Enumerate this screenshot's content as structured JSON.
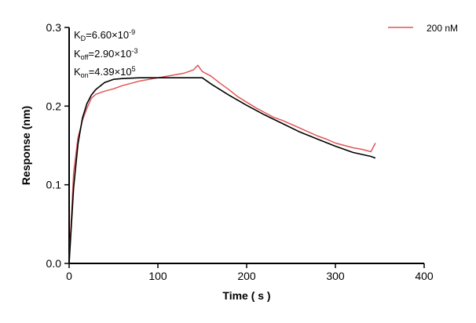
{
  "chart_data": {
    "type": "line",
    "xlabel": "Time ( s )",
    "ylabel": "Response (nm)",
    "xlim": [
      0,
      400
    ],
    "ylim": [
      0,
      0.3
    ],
    "x_ticks": [
      "0",
      "100",
      "200",
      "300",
      "400"
    ],
    "y_ticks": [
      "0.0",
      "0.1",
      "0.2",
      "0.3"
    ],
    "legend_position": "top-right",
    "grid": false,
    "annotations": {
      "kd": {
        "base": "K",
        "sub": "D",
        "text": "=6.60×10",
        "sup": "-9"
      },
      "koff": {
        "base": "K",
        "sub": "off",
        "text": "=2.90×10",
        "sup": "-3"
      },
      "kon": {
        "base": "K",
        "sub": "on",
        "text": "=4.39×10",
        "sup": "5"
      }
    },
    "series": [
      {
        "name": "200 nM",
        "color": "#e05555",
        "x": [
          0,
          5,
          10,
          15,
          20,
          25,
          30,
          40,
          50,
          60,
          70,
          80,
          90,
          100,
          110,
          120,
          130,
          140,
          145,
          150,
          160,
          170,
          180,
          190,
          200,
          210,
          220,
          230,
          240,
          250,
          260,
          270,
          280,
          290,
          300,
          310,
          320,
          330,
          340,
          345
        ],
        "y": [
          0.0,
          0.115,
          0.16,
          0.182,
          0.197,
          0.21,
          0.215,
          0.219,
          0.222,
          0.226,
          0.229,
          0.232,
          0.234,
          0.236,
          0.238,
          0.24,
          0.242,
          0.246,
          0.252,
          0.244,
          0.238,
          0.229,
          0.221,
          0.212,
          0.205,
          0.198,
          0.192,
          0.186,
          0.182,
          0.177,
          0.172,
          0.167,
          0.162,
          0.158,
          0.153,
          0.15,
          0.147,
          0.145,
          0.142,
          0.153
        ]
      },
      {
        "name": "",
        "color": "#000000",
        "x": [
          0,
          5,
          10,
          15,
          20,
          25,
          30,
          40,
          50,
          60,
          80,
          100,
          120,
          140,
          150,
          160,
          180,
          200,
          220,
          240,
          260,
          280,
          300,
          320,
          340,
          345
        ],
        "y": [
          0.0,
          0.096,
          0.152,
          0.185,
          0.203,
          0.214,
          0.221,
          0.23,
          0.234,
          0.235,
          0.236,
          0.236,
          0.236,
          0.236,
          0.236,
          0.228,
          0.214,
          0.201,
          0.189,
          0.178,
          0.167,
          0.158,
          0.149,
          0.141,
          0.136,
          0.134
        ]
      }
    ]
  }
}
